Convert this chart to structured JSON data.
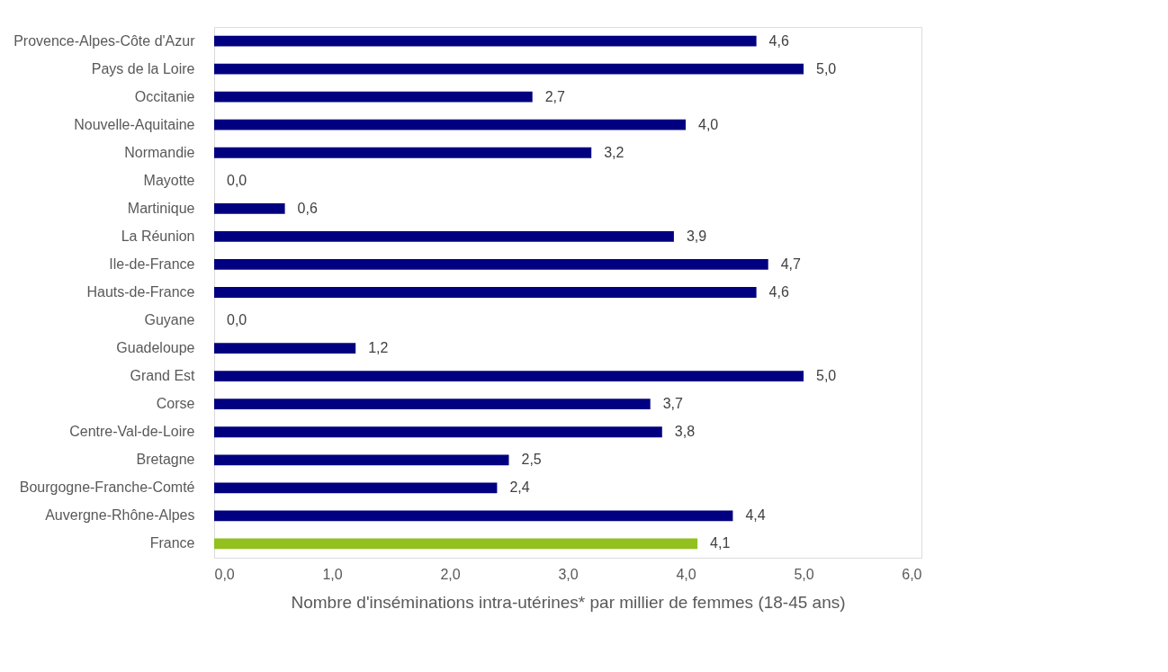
{
  "chart_data": {
    "type": "bar",
    "orientation": "horizontal",
    "xlabel": "Nombre d'inséminations intra-utérines* par millier de femmes (18-45 ans)",
    "categories": [
      "Provence-Alpes-Côte d'Azur",
      "Pays de la Loire",
      "Occitanie",
      "Nouvelle-Aquitaine",
      "Normandie",
      "Mayotte",
      "Martinique",
      "La Réunion",
      "Ile-de-France",
      "Hauts-de-France",
      "Guyane",
      "Guadeloupe",
      "Grand Est",
      "Corse",
      "Centre-Val-de-Loire",
      "Bretagne",
      "Bourgogne-Franche-Comté",
      "Auvergne-Rhône-Alpes",
      "France"
    ],
    "values": [
      4.6,
      5.0,
      2.7,
      4.0,
      3.2,
      0.0,
      0.6,
      3.9,
      4.7,
      4.6,
      0.0,
      1.2,
      5.0,
      3.7,
      3.8,
      2.5,
      2.4,
      4.4,
      4.1
    ],
    "value_labels": [
      "4,6",
      "5,0",
      "2,7",
      "4,0",
      "3,2",
      "0,0",
      "0,6",
      "3,9",
      "4,7",
      "4,6",
      "0,0",
      "1,2",
      "5,0",
      "3,7",
      "3,8",
      "2,5",
      "2,4",
      "4,4",
      "4,1"
    ],
    "colors": [
      "#000080",
      "#000080",
      "#000080",
      "#000080",
      "#000080",
      "#000080",
      "#000080",
      "#000080",
      "#000080",
      "#000080",
      "#000080",
      "#000080",
      "#000080",
      "#000080",
      "#000080",
      "#000080",
      "#000080",
      "#000080",
      "#92c01f"
    ],
    "xlim": [
      0,
      6
    ],
    "xticks": [
      {
        "value": 0,
        "label": "0,0"
      },
      {
        "value": 1,
        "label": "1,0"
      },
      {
        "value": 2,
        "label": "2,0"
      },
      {
        "value": 3,
        "label": "3,0"
      },
      {
        "value": 4,
        "label": "4,0"
      },
      {
        "value": 5,
        "label": "5,0"
      },
      {
        "value": 6,
        "label": "6,0"
      }
    ],
    "grid": false
  }
}
